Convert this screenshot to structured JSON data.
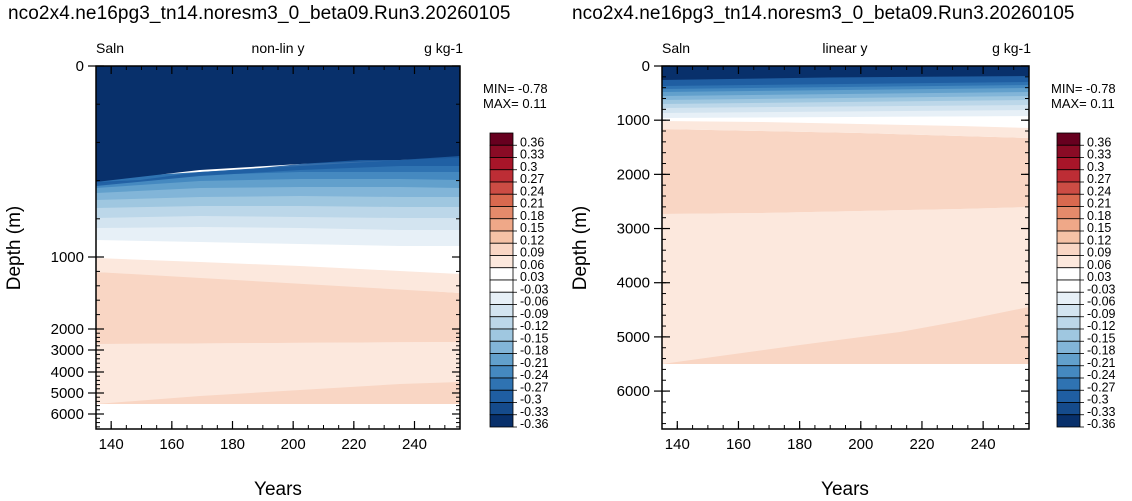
{
  "panels": [
    {
      "title": "nco2x4.ne16pg3_tn14.noresm3_0_beta09.Run3.20260105",
      "left_label": "Saln",
      "center_label": "non-lin y",
      "right_label": "g kg-1",
      "min_text": "MIN= -0.78",
      "max_text": "MAX=  0.11",
      "xlabel": "Years",
      "ylabel": "Depth (m)"
    },
    {
      "title": "nco2x4.ne16pg3_tn14.noresm3_0_beta09.Run3.20260105",
      "left_label": "Saln",
      "center_label": "linear y",
      "right_label": "g kg-1",
      "min_text": "MIN= -0.78",
      "max_text": "MAX=  0.11",
      "xlabel": "Years",
      "ylabel": "Depth (m)"
    }
  ],
  "colors": {
    "neg_deep": "#08306b",
    "pos_light": "#fde7dc",
    "pos_mid": "#f8d0bd",
    "white": "#ffffff"
  },
  "chart_data": [
    {
      "type": "heatmap",
      "variable": "Saln",
      "units": "g kg-1",
      "y_scale": "non-linear",
      "x_ticks": [
        140,
        160,
        180,
        200,
        220,
        240
      ],
      "y_ticks": [
        0,
        1000,
        2000,
        3000,
        4000,
        5000,
        6000
      ],
      "xlim": [
        135,
        255
      ],
      "ylim": [
        6700,
        0
      ],
      "depth_max_data": 5500,
      "min": -0.78,
      "max": 0.11
    },
    {
      "type": "heatmap",
      "variable": "Saln",
      "units": "g kg-1",
      "y_scale": "linear",
      "x_ticks": [
        140,
        160,
        180,
        200,
        220,
        240
      ],
      "y_ticks": [
        0,
        1000,
        2000,
        3000,
        4000,
        5000,
        6000
      ],
      "xlim": [
        135,
        255
      ],
      "ylim": [
        6700,
        0
      ],
      "depth_max_data": 5500,
      "min": -0.78,
      "max": 0.11
    }
  ],
  "colorbar": {
    "levels": [
      "0.36",
      "0.33",
      "0.3",
      "0.27",
      "0.24",
      "0.21",
      "0.18",
      "0.15",
      "0.12",
      "0.09",
      "0.06",
      "0.03",
      "-0.03",
      "-0.06",
      "-0.09",
      "-0.12",
      "-0.15",
      "-0.18",
      "-0.21",
      "-0.24",
      "-0.27",
      "-0.3",
      "-0.33",
      "-0.36"
    ],
    "colors": [
      "#67001f",
      "#8a0b25",
      "#a81529",
      "#bd2d35",
      "#cc4c44",
      "#d9694f",
      "#e48a6b",
      "#efa888",
      "#f5c2a6",
      "#f9d6c4",
      "#fce8dd",
      "#ffffff",
      "#ffffff",
      "#e7f0f7",
      "#d3e4f0",
      "#bcd7e9",
      "#9fc7e0",
      "#82b5d8",
      "#62a0cc",
      "#4589c0",
      "#2f73b2",
      "#1f5ea2",
      "#154b8c",
      "#08306b"
    ]
  }
}
